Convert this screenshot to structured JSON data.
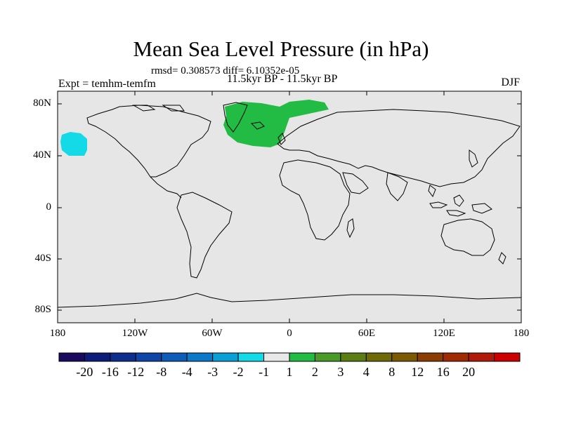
{
  "title": "Mean Sea Level Pressure (in hPa)",
  "stats": "rmsd= 0.308573 diff= 6.10352e-05",
  "experiment": "Expt = temhm-temfm",
  "period": "11.5kyr BP - 11.5kyr BP",
  "season": "DJF",
  "y_ticks": [
    "80N",
    "40N",
    "0",
    "40S",
    "80S"
  ],
  "x_ticks": [
    "180",
    "120W",
    "60W",
    "0",
    "60E",
    "120E",
    "180"
  ],
  "colorbar": {
    "colors": [
      "#1a0a5e",
      "#0d1c78",
      "#0e2d8c",
      "#0e45a6",
      "#0d5cb8",
      "#0b78c8",
      "#0aa0d6",
      "#14d9e6",
      "#e8e8e8",
      "#22bb44",
      "#4a9a2a",
      "#5c7c14",
      "#6e6a08",
      "#7c5a04",
      "#8a3c04",
      "#a02a04",
      "#b01a0a",
      "#cc0000"
    ],
    "labels": [
      "-20",
      "-16",
      "-12",
      "-8",
      "-4",
      "-3",
      "-2",
      "-1",
      "1",
      "2",
      "3",
      "4",
      "8",
      "12",
      "16",
      "20"
    ]
  },
  "colors": {
    "map_background": "#e6e6e6",
    "positive_anomaly": "#22bb44",
    "negative_anomaly": "#14d9e6"
  }
}
